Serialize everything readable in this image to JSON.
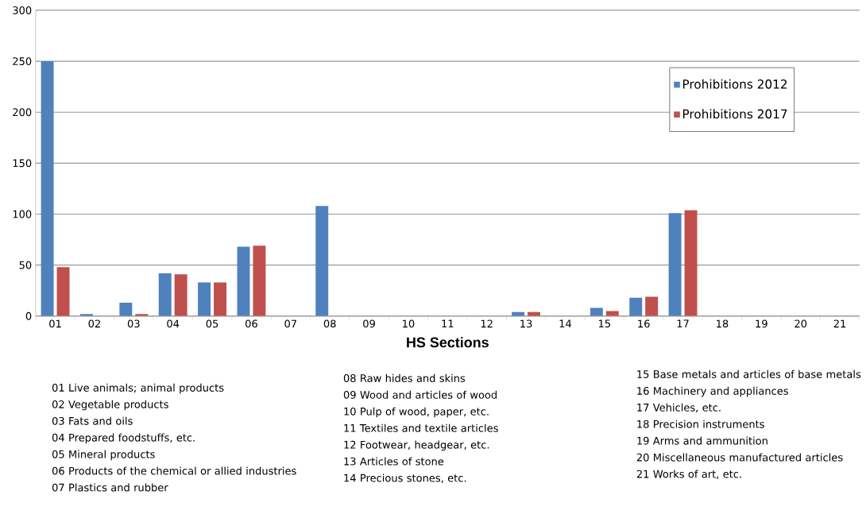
{
  "chart_data": {
    "type": "bar",
    "xlabel": "HS Sections",
    "categories": [
      "01",
      "02",
      "03",
      "04",
      "05",
      "06",
      "07",
      "08",
      "09",
      "10",
      "11",
      "12",
      "13",
      "14",
      "15",
      "16",
      "17",
      "18",
      "19",
      "20",
      "21"
    ],
    "series": [
      {
        "name": "Prohibitions 2012",
        "color": "#4f81bd",
        "values": [
          250,
          2,
          13,
          42,
          33,
          68,
          0,
          108,
          0,
          0,
          0,
          0,
          4,
          0,
          8,
          18,
          101,
          0,
          0,
          0,
          0
        ]
      },
      {
        "name": "Prohibitions 2017",
        "color": "#c0504d",
        "values": [
          48,
          0,
          2,
          41,
          33,
          69,
          0,
          0,
          0,
          0,
          0,
          0,
          4,
          0,
          5,
          19,
          104,
          0,
          0,
          0,
          0
        ]
      }
    ],
    "ylim": [
      0,
      300
    ],
    "yticks": [
      0,
      50,
      100,
      150,
      200,
      250,
      300
    ],
    "grid": "y",
    "legend": "top right",
    "annotations": [
      "01 Live animals; animal products",
      "02 Vegetable products",
      "03 Fats and oils",
      "04 Prepared foodstuffs, etc.",
      "05 Mineral products",
      "06 Products of the chemical or allied industries",
      "07 Plastics and rubber",
      "08 Raw hides and skins",
      "09 Wood and articles of wood",
      "10 Pulp of wood, paper, etc.",
      "11 Textiles and textile articles",
      "12 Footwear, headgear, etc.",
      "13 Articles of stone",
      "14 Precious stones, etc.",
      "15 Base metals and articles of base metals",
      "16 Machinery and appliances",
      "17 Vehicles, etc.",
      "18 Precision instruments",
      "19 Arms and ammunition",
      "20 Miscellaneous manufactured articles",
      "21 Works of art, etc."
    ]
  }
}
